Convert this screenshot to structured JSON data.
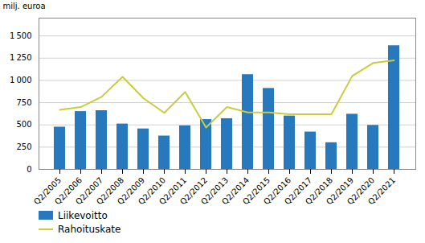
{
  "chart_data": {
    "type": "bar",
    "ylabel": "milj. euroa",
    "categories": [
      "Q2/2005",
      "Q2/2006",
      "Q2/2007",
      "Q2/2008",
      "Q2/2009",
      "Q2/2010",
      "Q2/2011",
      "Q2/2012",
      "Q2/2013",
      "Q2/2014",
      "Q2/2015",
      "Q2/2016",
      "Q2/2017",
      "Q2/2018",
      "Q2/2019",
      "Q2/2020",
      "Q2/2021"
    ],
    "series": [
      {
        "name": "Liikevoitto",
        "type": "bar",
        "color": "#2878bd",
        "values": [
          475,
          650,
          660,
          510,
          455,
          375,
          490,
          560,
          570,
          1065,
          910,
          600,
          420,
          300,
          620,
          495,
          1390
        ]
      },
      {
        "name": "Rahoituskate",
        "type": "line",
        "color": "#c8cc3e",
        "values": [
          670,
          700,
          815,
          1040,
          800,
          635,
          870,
          470,
          700,
          640,
          640,
          620,
          620,
          620,
          1050,
          1195,
          1225
        ]
      }
    ],
    "ylim": [
      0,
      1700
    ],
    "yticks": [
      0,
      250,
      500,
      750,
      {
        "value": 1000,
        "label": "1 000"
      },
      {
        "value": 1250,
        "label": "1 250"
      },
      {
        "value": 1500,
        "label": "1 500"
      }
    ],
    "grid": true,
    "legend": "lower left"
  }
}
